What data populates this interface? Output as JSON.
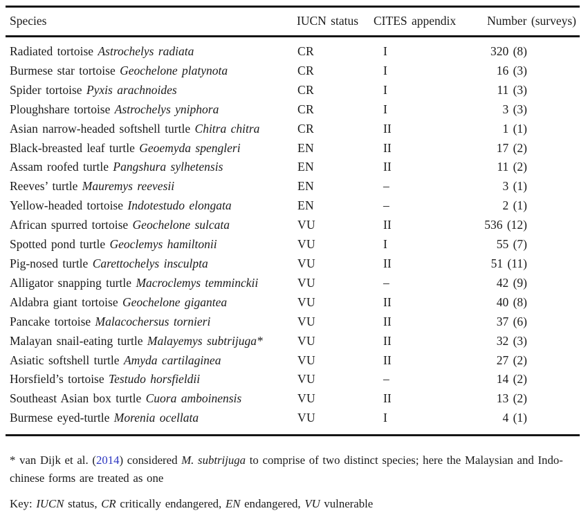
{
  "page": {
    "background_color": "#ffffff",
    "text_color": "#1b1b1b",
    "link_color": "#2b35c0"
  },
  "table": {
    "columns": [
      "Species",
      "IUCN status",
      "CITES appendix",
      "Number (surveys)"
    ],
    "rows": [
      {
        "common": "Radiated tortoise",
        "scientific": "Astrochelys radiata",
        "iucn": "CR",
        "cites": "I",
        "number": "320 (8)"
      },
      {
        "common": "Burmese star tortoise",
        "scientific": "Geochelone platynota",
        "iucn": "CR",
        "cites": "I",
        "number": "16 (3)"
      },
      {
        "common": "Spider tortoise",
        "scientific": "Pyxis arachnoides",
        "iucn": "CR",
        "cites": "I",
        "number": "11 (3)"
      },
      {
        "common": "Ploughshare tortoise",
        "scientific": "Astrochelys yniphora",
        "iucn": "CR",
        "cites": "I",
        "number": "3 (3)"
      },
      {
        "common": "Asian narrow-headed softshell turtle",
        "scientific": "Chitra chitra",
        "iucn": "CR",
        "cites": "II",
        "number": "1 (1)"
      },
      {
        "common": "Black-breasted leaf turtle",
        "scientific": "Geoemyda spengleri",
        "iucn": "EN",
        "cites": "II",
        "number": "17 (2)"
      },
      {
        "common": "Assam roofed turtle",
        "scientific": "Pangshura sylhetensis",
        "iucn": "EN",
        "cites": "II",
        "number": "11 (2)"
      },
      {
        "common": "Reeves’ turtle",
        "scientific": "Mauremys reevesii",
        "iucn": "EN",
        "cites": "–",
        "number": "3 (1)"
      },
      {
        "common": "Yellow-headed tortoise",
        "scientific": "Indotestudo elongata",
        "iucn": "EN",
        "cites": "–",
        "number": "2 (1)"
      },
      {
        "common": "African spurred tortoise",
        "scientific": "Geochelone sulcata",
        "iucn": "VU",
        "cites": "II",
        "number": "536 (12)"
      },
      {
        "common": "Spotted pond turtle",
        "scientific": "Geoclemys hamiltonii",
        "iucn": "VU",
        "cites": "I",
        "number": "55 (7)"
      },
      {
        "common": "Pig-nosed turtle",
        "scientific": "Carettochelys insculpta",
        "iucn": "VU",
        "cites": "II",
        "number": "51 (11)"
      },
      {
        "common": "Alligator snapping turtle",
        "scientific": "Macroclemys temminckii",
        "iucn": "VU",
        "cites": "–",
        "number": "42 (9)"
      },
      {
        "common": "Aldabra giant tortoise",
        "scientific": "Geochelone gigantea",
        "iucn": "VU",
        "cites": "II",
        "number": "40 (8)"
      },
      {
        "common": "Pancake tortoise",
        "scientific": "Malacochersus tornieri",
        "iucn": "VU",
        "cites": "II",
        "number": "37 (6)"
      },
      {
        "common": "Malayan snail-eating turtle",
        "scientific": "Malayemys subtrijuga*",
        "iucn": "VU",
        "cites": "II",
        "number": "32 (3)"
      },
      {
        "common": "Asiatic softshell turtle",
        "scientific": "Amyda cartilaginea",
        "iucn": "VU",
        "cites": "II",
        "number": "27 (2)"
      },
      {
        "common": "Horsfield’s tortoise",
        "scientific": "Testudo horsfieldii",
        "iucn": "VU",
        "cites": "–",
        "number": "14 (2)"
      },
      {
        "common": "Southeast Asian box turtle",
        "scientific": "Cuora amboinensis",
        "iucn": "VU",
        "cites": "II",
        "number": "13 (2)"
      },
      {
        "common": "Burmese eyed-turtle",
        "scientific": "Morenia ocellata",
        "iucn": "VU",
        "cites": "I",
        "number": "4 (1)"
      }
    ]
  },
  "footnote": {
    "marker": "* ",
    "pre": "van Dijk et al. (",
    "citation": "2014",
    "mid": ") considered ",
    "species": "M. subtrijuga",
    "post": " to comprise of two distinct species; here the Malaysian and Indo-chinese forms are treated as one"
  },
  "key": {
    "label": "Key: ",
    "iucn": "IUCN",
    "t1": " status, ",
    "cr": "CR",
    "t2": " critically endangered, ",
    "en": "EN",
    "t3": " endangered, ",
    "vu": "VU",
    "t4": " vulnerable"
  }
}
